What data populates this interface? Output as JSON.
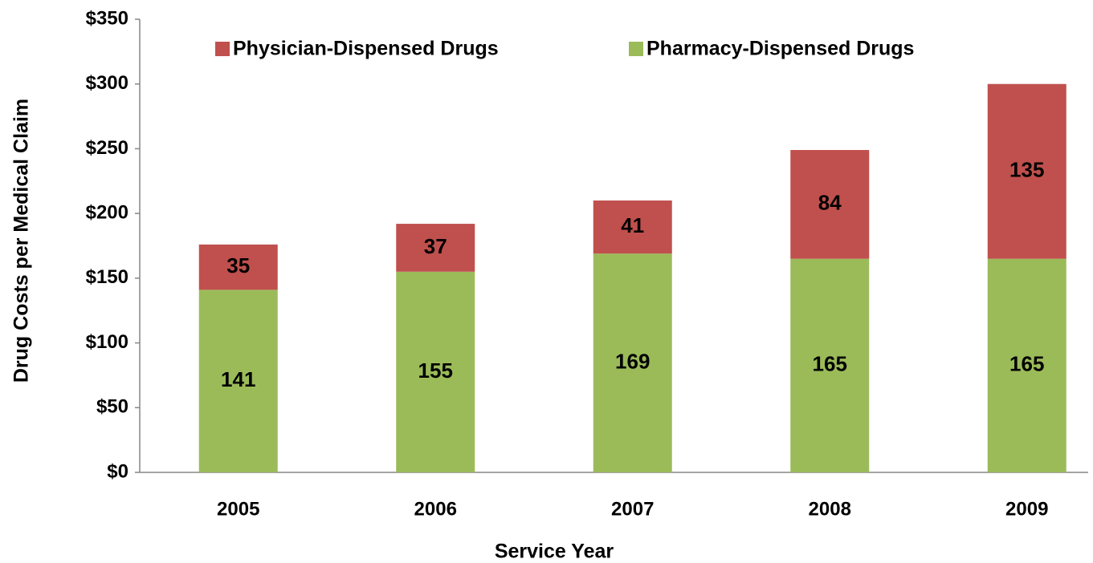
{
  "chart_data": {
    "type": "stacked_bar",
    "y_label": "Drug Costs per Medical Claim",
    "x_label": "Service Year",
    "categories": [
      "2005",
      "2006",
      "2007",
      "2008",
      "2009"
    ],
    "series": [
      {
        "name": "Pharmacy-Dispensed Drugs",
        "color": "#9bbb59",
        "values": [
          141,
          155,
          169,
          165,
          165
        ]
      },
      {
        "name": "Physician-Dispensed Drugs",
        "color": "#c0504d",
        "values": [
          35,
          37,
          41,
          84,
          135
        ]
      }
    ],
    "ylim": [
      0,
      350
    ],
    "yticks": [
      {
        "value": 0,
        "label": "$0"
      },
      {
        "value": 50,
        "label": "$50"
      },
      {
        "value": 100,
        "label": "$100"
      },
      {
        "value": 150,
        "label": "$150"
      },
      {
        "value": 200,
        "label": "$200"
      },
      {
        "value": 250,
        "label": "$250"
      },
      {
        "value": 300,
        "label": "$300"
      },
      {
        "value": 350,
        "label": "$350"
      }
    ],
    "legend": "top"
  }
}
